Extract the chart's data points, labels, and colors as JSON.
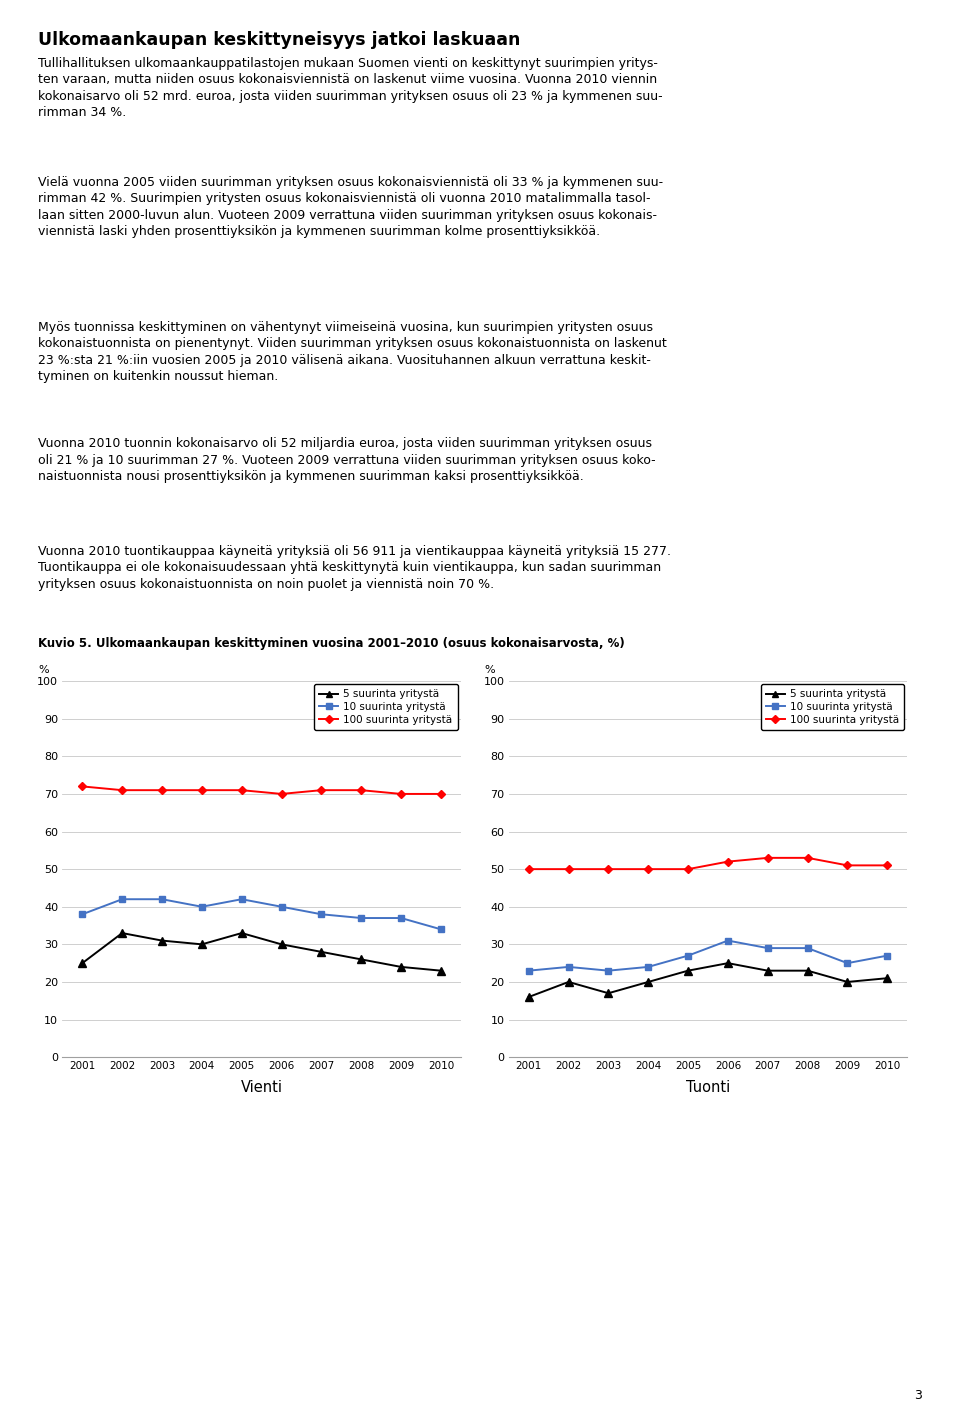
{
  "title": "Ulkomaankaupan keskittyneisyys jatkoi laskuaan",
  "figure_caption": "Kuvio 5. Ulkomaankaupan keskittyminen vuosina 2001–2010 (osuus kokonaisarvosta, %)",
  "paragraphs": [
    "Tullihallituksen ulkomaankauppatilastojen mukaan Suomen vienti on keskittynyt suurimpien yritys-\nten varaan, mutta niiden osuus kokonaisviennistä on laskenut viime vuosina. Vuonna 2010 viennin\nkokonaisarvo oli 52 mrd. euroa, josta viiden suurimman yrityksen osuus oli 23 % ja kymmenen suu-\nrimman 34 %.",
    "Vielä vuonna 2005 viiden suurimman yrityksen osuus kokonaisviennistä oli 33 % ja kymmenen suu-\nrimman 42 %. Suurimpien yritysten osuus kokonaisviennistä oli vuonna 2010 matalimmalla tasol-\nlaan sitten 2000-luvun alun. Vuoteen 2009 verrattuna viiden suurimman yrityksen osuus kokonais-\nviennistä laski yhden prosenttiyksikön ja kymmenen suurimman kolme prosenttiyksikköä.",
    "Myös tuonnissa keskittyminen on vähentynyt viimeiseinä vuosina, kun suurimpien yritysten osuus\nkokonaistuonnista on pienentynyt. Viiden suurimman yrityksen osuus kokonaistuonnista on laskenut\n23 %:sta 21 %:iin vuosien 2005 ja 2010 välisenä aikana. Vuosituhannen alkuun verrattuna keskit-\ntyminen on kuitenkin noussut hieman.",
    "Vuonna 2010 tuonnin kokonaisarvo oli 52 miljardia euroa, josta viiden suurimman yrityksen osuus\noli 21 % ja 10 suurimman 27 %. Vuoteen 2009 verrattuna viiden suurimman yrityksen osuus koko-\nnaistuonnista nousi prosenttiyksikön ja kymmenen suurimman kaksi prosenttiyksikköä.",
    "Vuonna 2010 tuontikauppaa käyneitä yrityksiä oli 56 911 ja vientikauppaa käyneitä yrityksiä 15 277.\nTuontikauppa ei ole kokonaisuudessaan yhtä keskittynytä kuin vientikauppa, kun sadan suurimman\nyrityksen osuus kokonaistuonnista on noin puolet ja viennistä noin 70 %."
  ],
  "years": [
    2001,
    2002,
    2003,
    2004,
    2005,
    2006,
    2007,
    2008,
    2009,
    2010
  ],
  "vienti_top5": [
    25,
    33,
    31,
    30,
    33,
    30,
    28,
    26,
    24,
    23
  ],
  "vienti_top10": [
    38,
    42,
    42,
    40,
    42,
    40,
    38,
    37,
    37,
    34
  ],
  "vienti_top100": [
    72,
    71,
    71,
    71,
    71,
    70,
    71,
    71,
    70,
    70
  ],
  "tuonti_top5": [
    16,
    20,
    17,
    20,
    23,
    25,
    23,
    23,
    20,
    21
  ],
  "tuonti_top10": [
    23,
    24,
    23,
    24,
    27,
    31,
    29,
    29,
    25,
    27
  ],
  "tuonti_top100": [
    50,
    50,
    50,
    50,
    50,
    52,
    53,
    53,
    51,
    51
  ],
  "color_top5": "#000000",
  "color_top10": "#4472C4",
  "color_top100": "#FF0000",
  "legend_top5": "5 suurinta yritystä",
  "legend_top10": "10 suurinta yritystä",
  "legend_top100": "100 suurinta yritystä",
  "label_vienti": "Vienti",
  "label_tuonti": "Tuonti",
  "ylim": [
    0,
    100
  ],
  "yticks": [
    0,
    10,
    20,
    30,
    40,
    50,
    60,
    70,
    80,
    90,
    100
  ],
  "page_number": "3",
  "fig_width": 9.6,
  "fig_height": 14.19
}
